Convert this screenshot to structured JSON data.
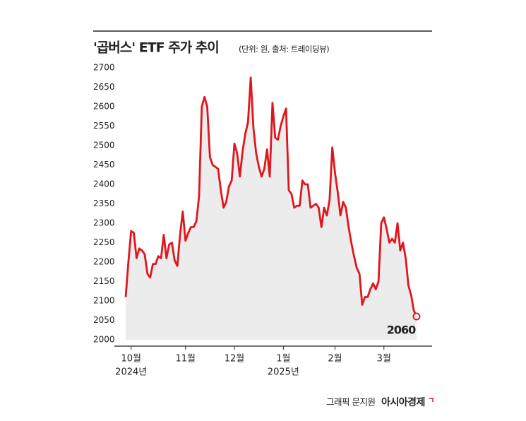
{
  "chart_data": {
    "type": "line",
    "title": "'곱버스' ETF 주가 추이",
    "subtitle": "(단위: 원, 출처: 트레이딩뷰)",
    "categories": [
      null,
      null,
      "10월",
      null,
      null,
      null,
      null,
      null,
      null,
      null,
      null,
      null,
      null,
      null,
      null,
      null,
      null,
      null,
      null,
      null,
      null,
      null,
      "11월",
      null,
      null,
      null,
      null,
      null,
      null,
      null,
      null,
      null,
      null,
      null,
      null,
      null,
      null,
      null,
      null,
      null,
      "12월",
      null,
      null,
      null,
      null,
      null,
      null,
      null,
      null,
      null,
      null,
      null,
      null,
      null,
      null,
      null,
      null,
      null,
      "1월",
      null,
      null,
      null,
      null,
      null,
      null,
      null,
      null,
      null,
      null,
      null,
      null,
      null,
      null,
      null,
      null,
      null,
      null,
      "2월",
      null,
      null,
      null,
      null,
      null,
      null,
      null,
      null,
      null,
      null,
      null,
      null,
      null,
      null,
      null,
      null,
      null,
      "3월",
      null,
      null,
      null,
      null,
      null,
      null,
      null,
      null,
      null,
      null,
      null,
      null
    ],
    "category_years": [
      null,
      null,
      "2024년",
      null,
      null,
      null,
      null,
      null,
      null,
      null,
      null,
      null,
      null,
      null,
      null,
      null,
      null,
      null,
      null,
      null,
      null,
      null,
      null,
      null,
      null,
      null,
      null,
      null,
      null,
      null,
      null,
      null,
      null,
      null,
      null,
      null,
      null,
      null,
      null,
      null,
      null,
      null,
      null,
      null,
      null,
      null,
      null,
      null,
      null,
      null,
      null,
      null,
      null,
      null,
      null,
      null,
      null,
      null,
      "2025년",
      null,
      null,
      null,
      null,
      null,
      null,
      null,
      null,
      null,
      null,
      null,
      null,
      null,
      null,
      null,
      null,
      null,
      null,
      null,
      null,
      null,
      null,
      null,
      null,
      null,
      null,
      null,
      null,
      null,
      null,
      null,
      null,
      null,
      null,
      null,
      null,
      null,
      null,
      null,
      null,
      null,
      null,
      null,
      null,
      null,
      null,
      null,
      null,
      null
    ],
    "values": [
      2110,
      2200,
      2280,
      2275,
      2210,
      2235,
      2230,
      2220,
      2170,
      2160,
      2195,
      2195,
      2215,
      2210,
      2270,
      2210,
      2245,
      2250,
      2205,
      2190,
      2270,
      2330,
      2255,
      2275,
      2290,
      2290,
      2305,
      2370,
      2600,
      2625,
      2600,
      2470,
      2450,
      2445,
      2440,
      2385,
      2340,
      2355,
      2395,
      2410,
      2505,
      2480,
      2420,
      2485,
      2530,
      2560,
      2675,
      2545,
      2480,
      2445,
      2420,
      2440,
      2490,
      2420,
      2610,
      2520,
      2515,
      2550,
      2575,
      2595,
      2385,
      2375,
      2340,
      2345,
      2345,
      2410,
      2400,
      2400,
      2340,
      2345,
      2350,
      2340,
      2290,
      2340,
      2320,
      2360,
      2495,
      2430,
      2380,
      2320,
      2355,
      2340,
      2290,
      2250,
      2215,
      2185,
      2170,
      2090,
      2110,
      2110,
      2130,
      2145,
      2130,
      2150,
      2300,
      2315,
      2285,
      2250,
      2260,
      2250,
      2300,
      2230,
      2250,
      2210,
      2140,
      2115,
      2075,
      2060
    ],
    "color": "#e0161e",
    "ylim": [
      2000,
      2700
    ],
    "yticks": [
      2000,
      2050,
      2100,
      2150,
      2200,
      2250,
      2300,
      2350,
      2400,
      2450,
      2500,
      2550,
      2600,
      2650,
      2700
    ],
    "credit": "그래픽 문지원",
    "source_logo": "아시아경제"
  }
}
